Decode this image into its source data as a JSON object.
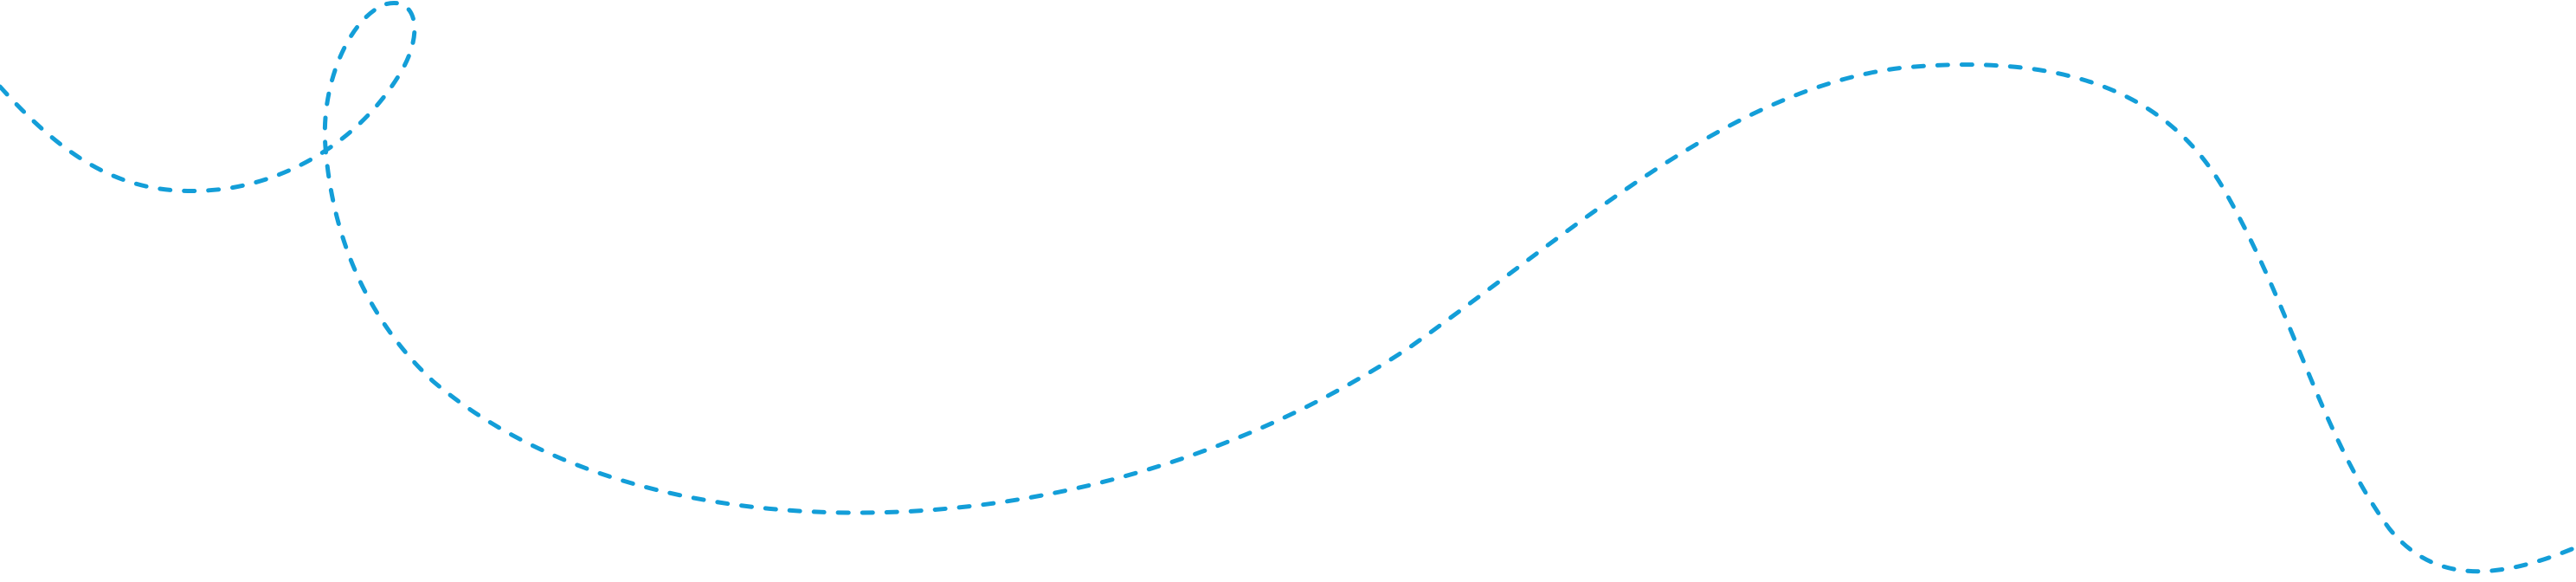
{
  "decoration": {
    "name": "dashed-curved-line",
    "style": "dashed",
    "color": "#139ED8"
  }
}
